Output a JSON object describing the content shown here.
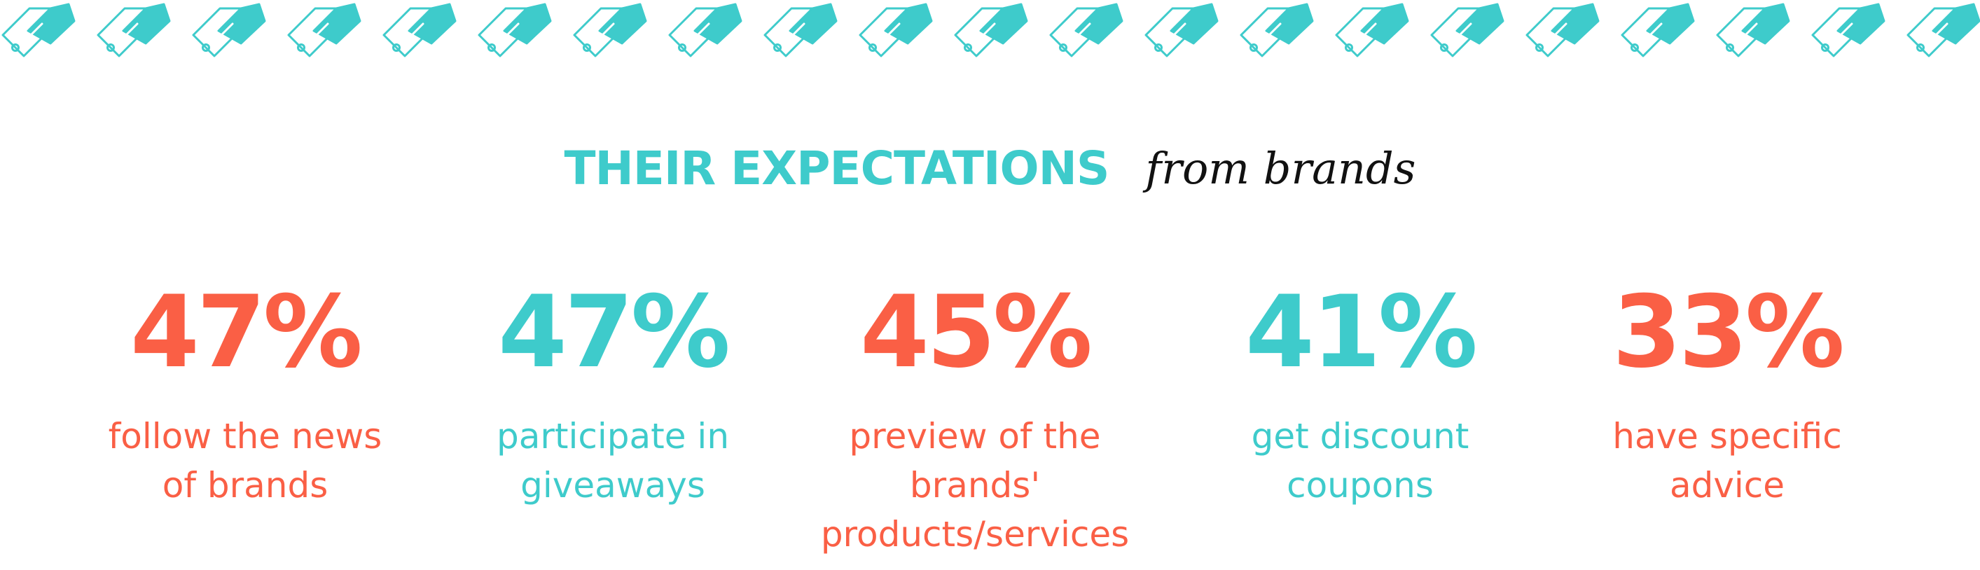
{
  "header": {
    "title": "THEIR EXPECTATIONS",
    "subtitle": "from brands",
    "decoration_icon": "price-tag-icon"
  },
  "colors": {
    "teal": "#3ecbcb",
    "coral": "#fa5f45",
    "ink": "#111111"
  },
  "stats": [
    {
      "value": "47%",
      "label": "follow the news\nof brands",
      "color": "coral"
    },
    {
      "value": "47%",
      "label": "participate in\ngiveaways",
      "color": "teal"
    },
    {
      "value": "45%",
      "label": "preview of the\nbrands'\nproducts/services",
      "color": "coral"
    },
    {
      "value": "41%",
      "label": "get discount\ncoupons",
      "color": "teal"
    },
    {
      "value": "33%",
      "label": "have specific\nadvice",
      "color": "coral"
    }
  ]
}
